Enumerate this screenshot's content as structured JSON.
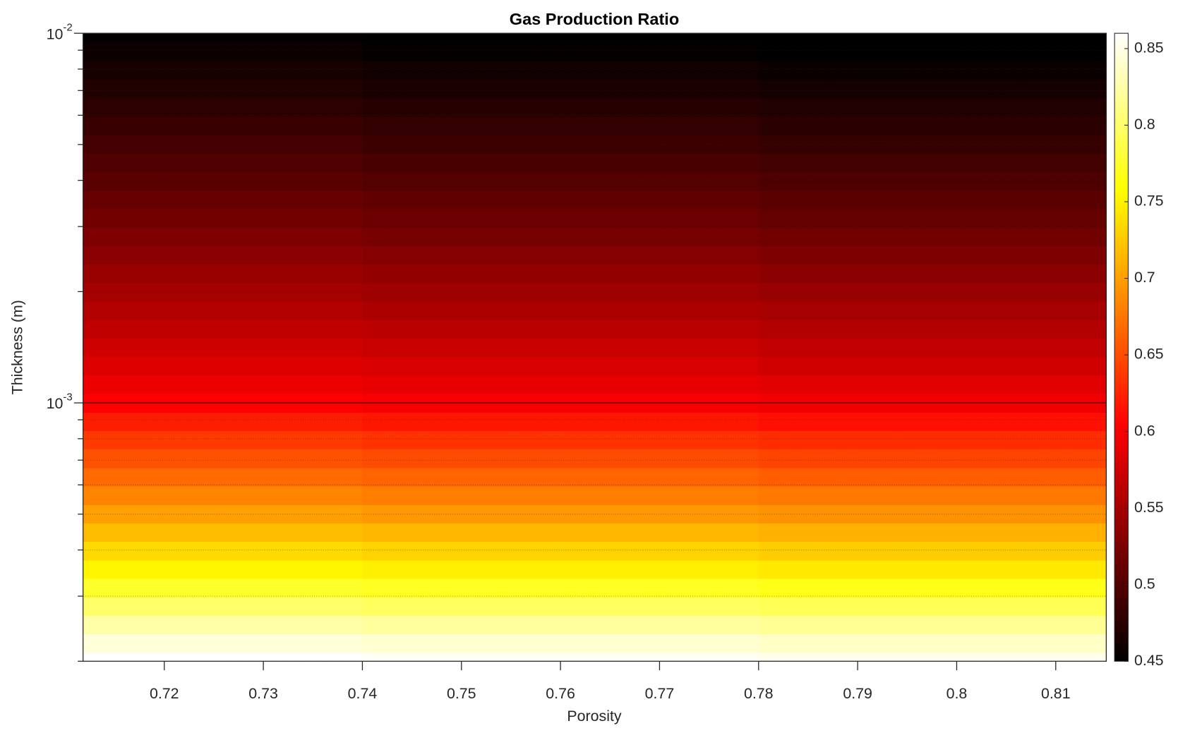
{
  "chart_data": {
    "type": "heatmap",
    "title": "Gas Production Ratio",
    "xlabel": "Porosity",
    "ylabel": "Thickness (m)",
    "x": [
      0.72,
      0.76,
      0.8
    ],
    "y": [
      0.0001995,
      0.0002239,
      0.0002512,
      0.0002818,
      0.0003162,
      0.0003548,
      0.0003981,
      0.0004467,
      0.0005012,
      0.0005623,
      0.000631,
      0.0007079,
      0.0007943,
      0.0008913,
      0.001,
      0.001122,
      0.001259,
      0.001413,
      0.001585,
      0.001778,
      0.001995,
      0.002239,
      0.002512,
      0.002818,
      0.003162,
      0.003548,
      0.003981,
      0.004467,
      0.005012,
      0.005623,
      0.00631,
      0.007079,
      0.007943,
      0.008913,
      0.01
    ],
    "z": [
      [
        0.86,
        0.856,
        0.852
      ],
      [
        0.845,
        0.841,
        0.837
      ],
      [
        0.825,
        0.821,
        0.817
      ],
      [
        0.8,
        0.796,
        0.792
      ],
      [
        0.775,
        0.771,
        0.767
      ],
      [
        0.752,
        0.748,
        0.744
      ],
      [
        0.735,
        0.731,
        0.727
      ],
      [
        0.718,
        0.714,
        0.71
      ],
      [
        0.7,
        0.696,
        0.692
      ],
      [
        0.684,
        0.68,
        0.676
      ],
      [
        0.668,
        0.664,
        0.66
      ],
      [
        0.653,
        0.649,
        0.645
      ],
      [
        0.638,
        0.634,
        0.63
      ],
      [
        0.621,
        0.617,
        0.613
      ],
      [
        0.604,
        0.6,
        0.596
      ],
      [
        0.594,
        0.59,
        0.586
      ],
      [
        0.584,
        0.58,
        0.576
      ],
      [
        0.575,
        0.571,
        0.567
      ],
      [
        0.566,
        0.562,
        0.558
      ],
      [
        0.558,
        0.554,
        0.55
      ],
      [
        0.55,
        0.546,
        0.542
      ],
      [
        0.542,
        0.538,
        0.534
      ],
      [
        0.534,
        0.53,
        0.526
      ],
      [
        0.526,
        0.522,
        0.518
      ],
      [
        0.519,
        0.515,
        0.511
      ],
      [
        0.512,
        0.508,
        0.504
      ],
      [
        0.505,
        0.501,
        0.497
      ],
      [
        0.498,
        0.494,
        0.49
      ],
      [
        0.491,
        0.487,
        0.483
      ],
      [
        0.484,
        0.48,
        0.476
      ],
      [
        0.477,
        0.473,
        0.469
      ],
      [
        0.47,
        0.466,
        0.462
      ],
      [
        0.464,
        0.46,
        0.456
      ],
      [
        0.457,
        0.453,
        0.449
      ],
      [
        0.451,
        0.448,
        0.445
      ]
    ],
    "xlim": [
      0.7118,
      0.8151
    ],
    "ylim": [
      0.0002,
      0.01
    ],
    "yscale": "log",
    "xticks": [
      0.72,
      0.73,
      0.74,
      0.75,
      0.76,
      0.77,
      0.78,
      0.79,
      0.8,
      0.81
    ],
    "yticks": [
      {
        "value": 0.001,
        "label": "10-3"
      },
      {
        "value": 0.01,
        "label": "10-2"
      }
    ],
    "yminorticks": [
      0.0002,
      0.0003,
      0.0004,
      0.0005,
      0.0006,
      0.0007,
      0.0008,
      0.0009,
      0.002,
      0.003,
      0.004,
      0.005,
      0.006,
      0.007,
      0.008,
      0.009
    ],
    "grid": true,
    "minor_grid": true,
    "colormap": "hot",
    "clim": [
      0.45,
      0.86
    ],
    "colorbar": true,
    "cticks": [
      0.45,
      0.5,
      0.55,
      0.6,
      0.65,
      0.7,
      0.75,
      0.8,
      0.85
    ]
  }
}
